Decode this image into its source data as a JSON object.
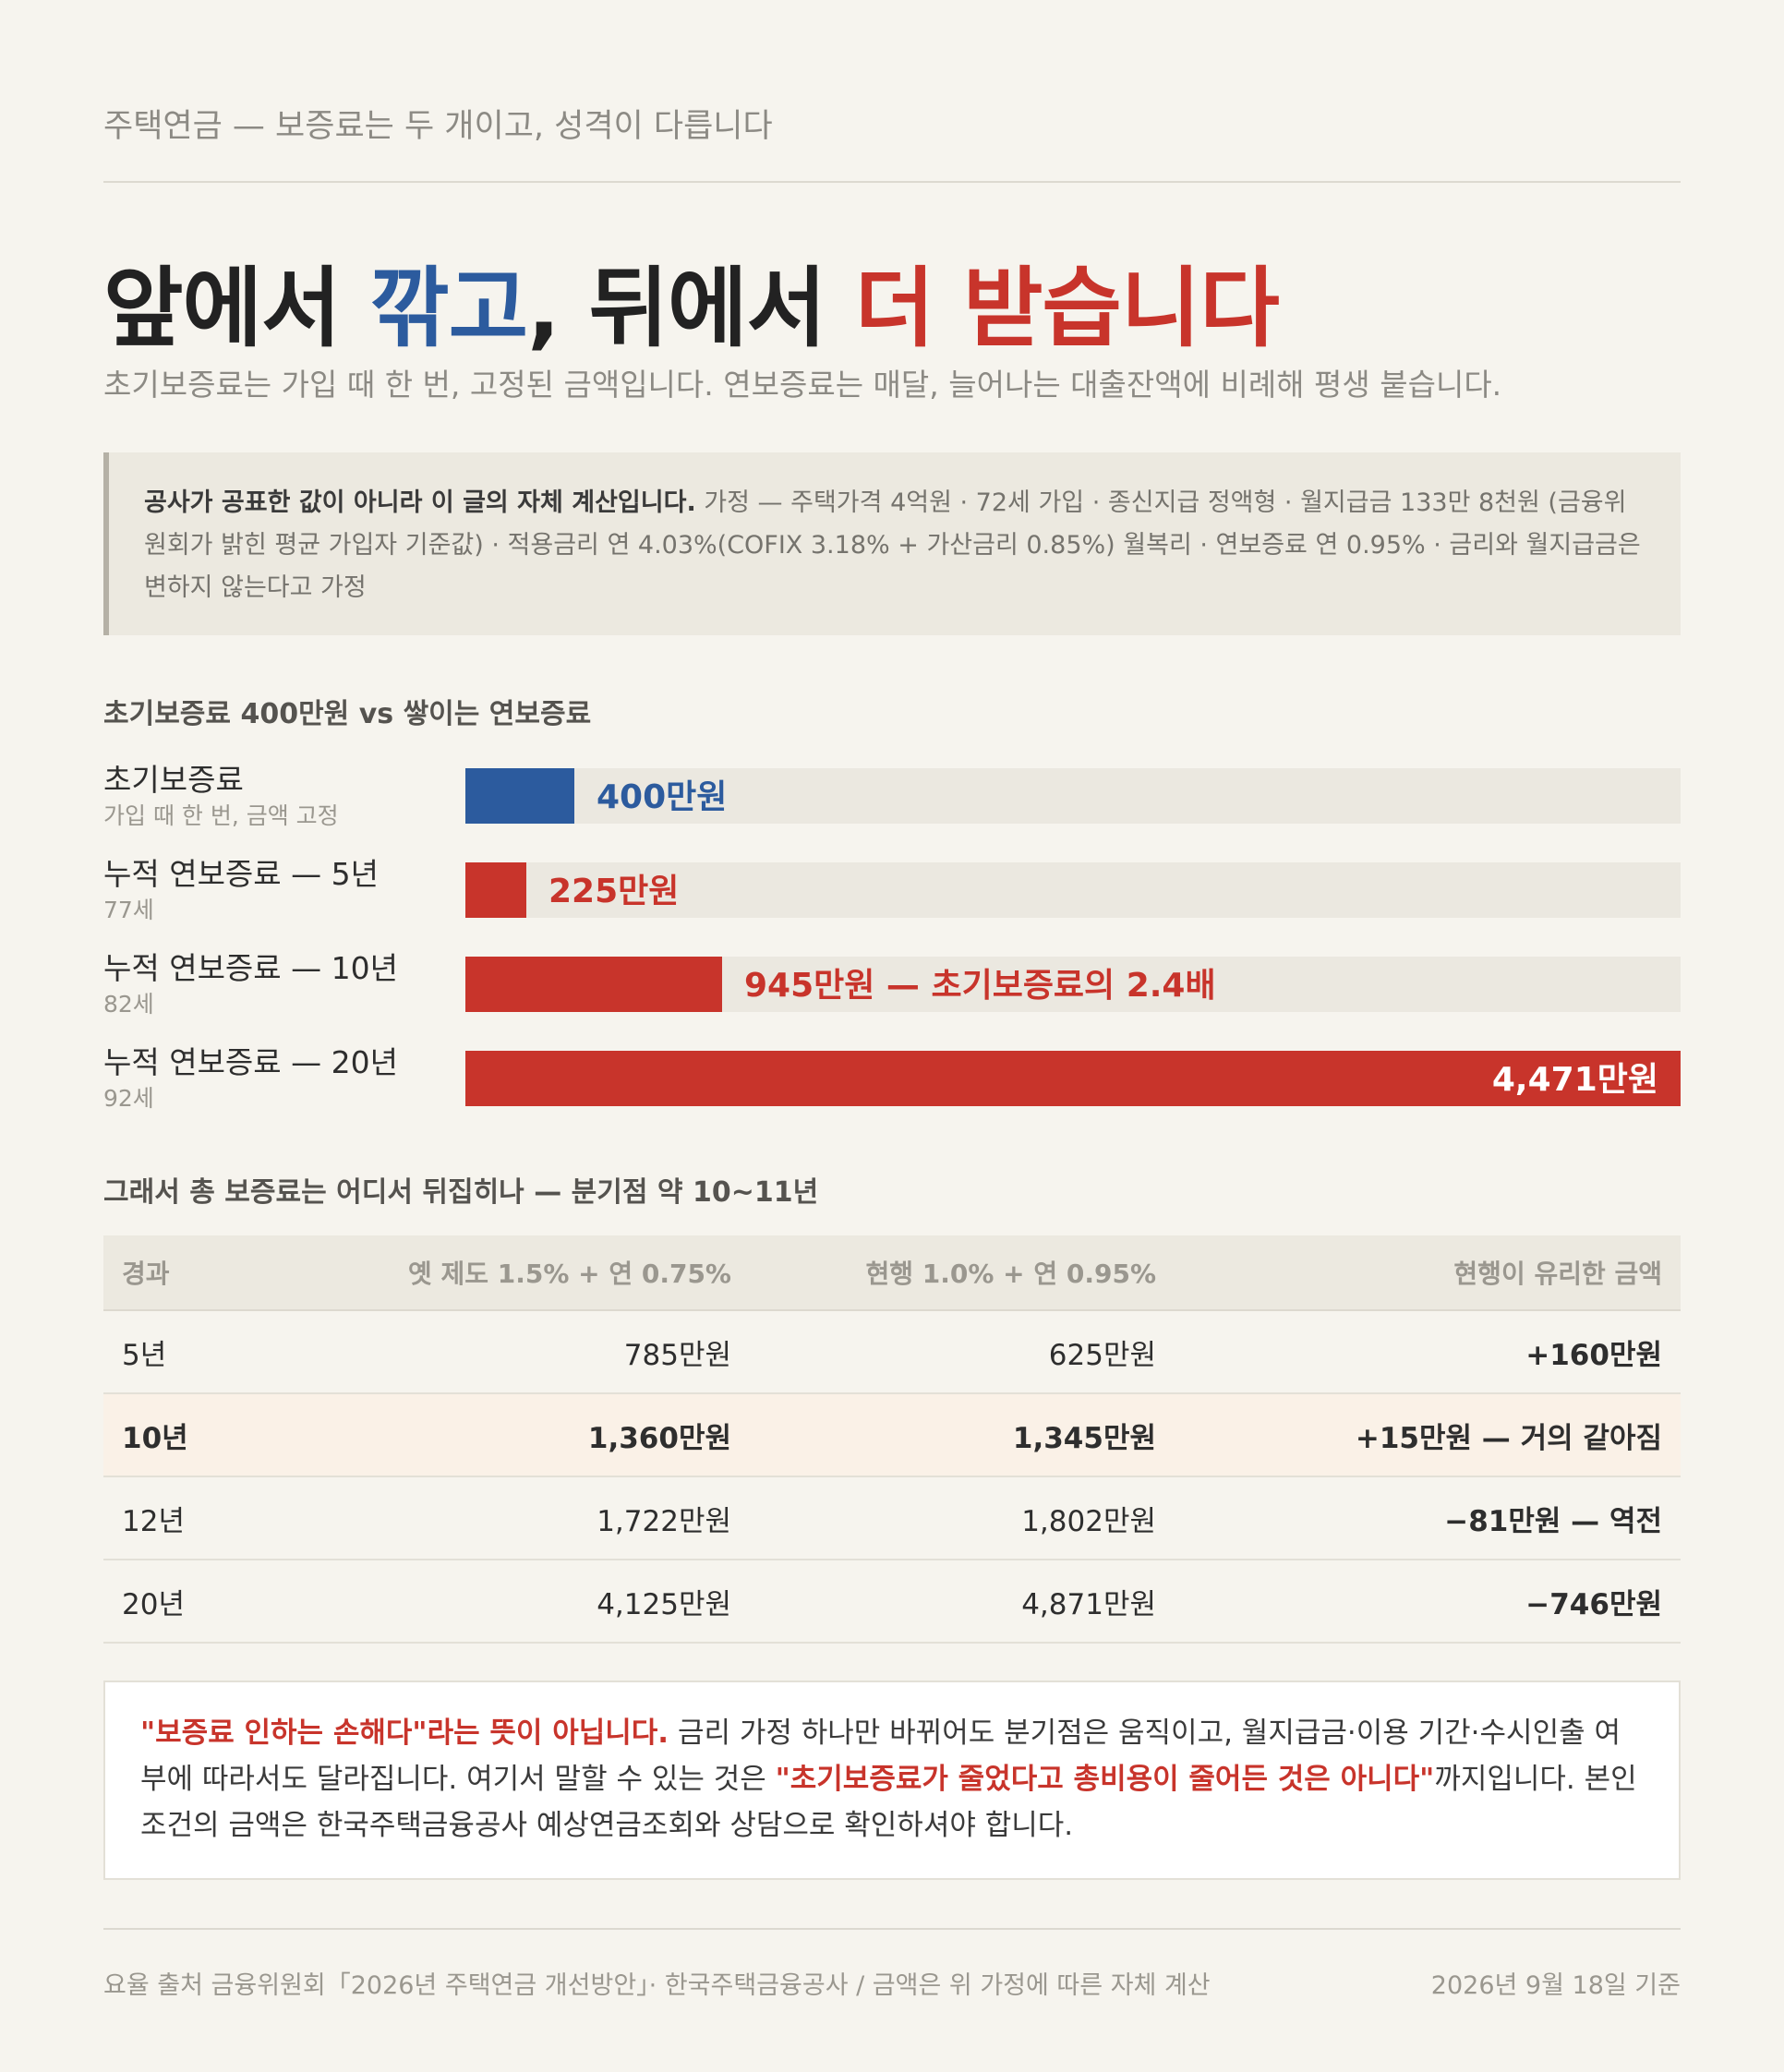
{
  "header": {
    "kicker": "주택연금 — 보증료는 두 개이고, 성격이 다릅니다",
    "title_a": "앞에서 ",
    "title_b": "깎고",
    "title_c": ", 뒤에서 ",
    "title_d": "더 받습니다",
    "subtitle": "초기보증료는 가입 때 한 번, 고정된 금액입니다. 연보증료는 매달, 늘어나는 대출잔액에 비례해 평생 붙습니다."
  },
  "note": {
    "bold": "공사가 공표한 값이 아니라 이 글의 자체 계산입니다.",
    "text": " 가정 — 주택가격 4억원 · 72세 가입 · 종신지급 정액형 · 월지급금 133만 8천원 (금융위원회가 밝힌 평균 가입자 기준값) · 적용금리 연 4.03%(COFIX 3.18% + 가산금리 0.85%) 월복리 · 연보증료 연 0.95% · 금리와 월지급금은 변하지 않는다고 가정"
  },
  "colors": {
    "blue": "#2c5b9e",
    "red": "#c8342b"
  },
  "chart_data": {
    "type": "bar",
    "orientation": "horizontal",
    "title": "초기보증료 400만원 vs 쌓이는 연보증료",
    "unit": "만원",
    "xlim": [
      0,
      4471
    ],
    "bars": [
      {
        "label": "초기보증료",
        "sublabel": "가입 때 한 번, 금액 고정",
        "value": 400,
        "value_label": "400만원",
        "color": "#2c5b9e"
      },
      {
        "label": "누적 연보증료 — 5년",
        "sublabel": "77세",
        "value": 225,
        "value_label": "225만원",
        "color": "#c8342b"
      },
      {
        "label": "누적 연보증료 — 10년",
        "sublabel": "82세",
        "value": 945,
        "value_label": "945만원 — 초기보증료의 2.4배",
        "color": "#c8342b"
      },
      {
        "label": "누적 연보증료 — 20년",
        "sublabel": "92세",
        "value": 4471,
        "value_label": "4,471만원",
        "color": "#c8342b"
      }
    ]
  },
  "table": {
    "title": "그래서 총 보증료는 어디서 뒤집히나 — 분기점 약 10~11년",
    "headers": [
      "경과",
      "옛 제도 1.5% + 연 0.75%",
      "현행 1.0% + 연 0.95%",
      "현행이 유리한 금액"
    ],
    "rows": [
      {
        "period": "5년",
        "old": "785만원",
        "new": "625만원",
        "diff": "+160만원",
        "sign": "pos",
        "highlight": false
      },
      {
        "period": "10년",
        "old": "1,360만원",
        "new": "1,345만원",
        "diff": "+15만원 — 거의 같아짐",
        "sign": "pos",
        "highlight": true
      },
      {
        "period": "12년",
        "old": "1,722만원",
        "new": "1,802만원",
        "diff": "−81만원 — 역전",
        "sign": "neg",
        "highlight": false
      },
      {
        "period": "20년",
        "old": "4,125만원",
        "new": "4,871만원",
        "diff": "−746만원",
        "sign": "neg",
        "highlight": false
      }
    ]
  },
  "callout": {
    "em1": "\"보증료 인하는 손해다\"라는 뜻이 아닙니다.",
    "t1": " 금리 가정 하나만 바뀌어도 분기점은 움직이고, 월지급금·이용 기간·수시인출 여부에 따라서도 달라집니다. 여기서 말할 수 있는 것은 ",
    "em2": "\"초기보증료가 줄었다고 총비용이 줄어든 것은 아니다\"",
    "t2": "까지입니다. 본인 조건의 금액은 한국주택금융공사 예상연금조회와 상담으로 확인하셔야 합니다."
  },
  "footer": {
    "source": "요율 출처 금융위원회「2026년 주택연금 개선방안」· 한국주택금융공사 / 금액은 위 가정에 따른 자체 계산",
    "date": "2026년 9월 18일 기준"
  }
}
